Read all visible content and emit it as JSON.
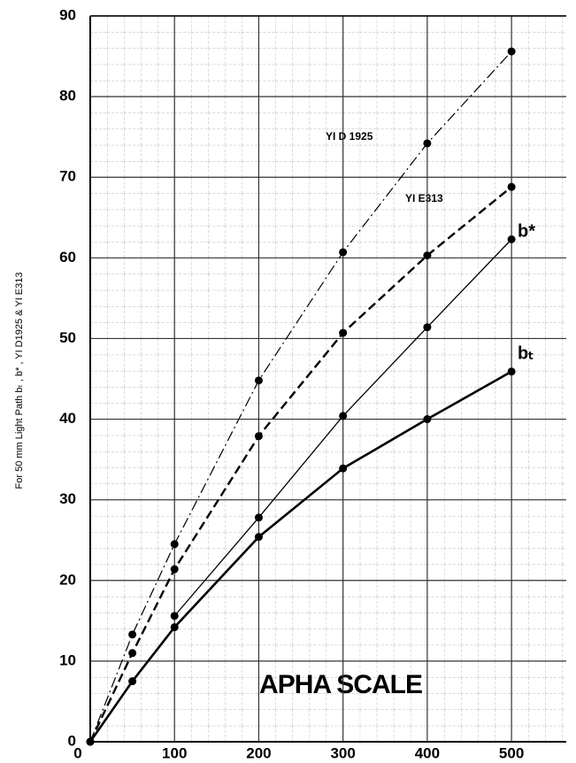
{
  "chart_data": {
    "type": "line",
    "annotation": "APHA SCALE",
    "y_label": "For 50 mm Light Path bₜ , b* , YI D1925 & YI E313",
    "x": [
      0,
      50,
      100,
      200,
      300,
      400,
      500
    ],
    "series": [
      {
        "name": "YI D 1925",
        "color": "#000000",
        "style": "dashdot",
        "width": 1.2,
        "values": [
          0,
          13.3,
          24.5,
          44.8,
          60.7,
          74.2,
          85.6
        ]
      },
      {
        "name": "YI E313",
        "color": "#000000",
        "style": "dashed",
        "width": 2.4,
        "values": [
          0,
          11,
          21.4,
          37.9,
          50.7,
          60.3,
          68.8
        ]
      },
      {
        "name": "b*",
        "color": "#000000",
        "style": "solid",
        "width": 1.3,
        "values": [
          0,
          null,
          15.6,
          27.8,
          40.4,
          51.4,
          62.3
        ]
      },
      {
        "name": "bₜ",
        "color": "#000000",
        "style": "solid",
        "width": 2.6,
        "values": [
          0,
          7.5,
          14.2,
          25.4,
          33.9,
          40,
          45.9
        ]
      }
    ],
    "xlim": [
      0,
      565
    ],
    "ylim": [
      0,
      90
    ],
    "xticks": [
      0,
      100,
      200,
      300,
      400,
      500
    ],
    "yticks": [
      0,
      10,
      20,
      30,
      40,
      50,
      60,
      70,
      80,
      90
    ],
    "grid": true
  }
}
